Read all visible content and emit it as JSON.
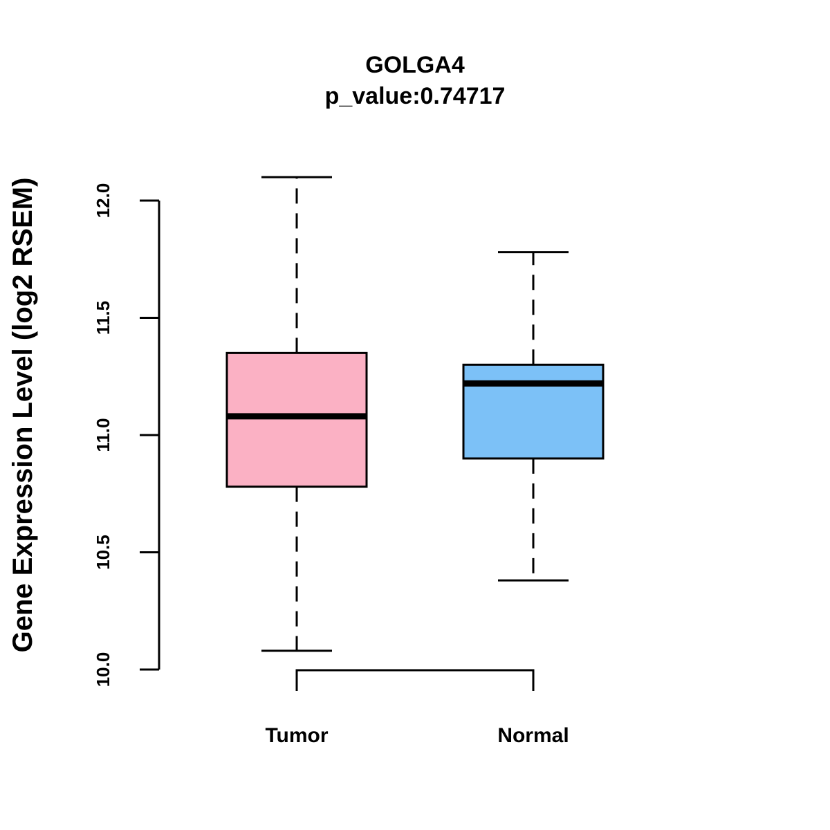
{
  "chart_data": {
    "type": "box",
    "title": "GOLGA4",
    "subtitle": "p_value:0.74717",
    "xlabel": "",
    "ylabel": "Gene Expression Level (log2 RSEM)",
    "ylim": [
      10.0,
      12.0
    ],
    "yticks": [
      "10.0",
      "10.5",
      "11.0",
      "11.5",
      "12.0"
    ],
    "categories": [
      "Tumor",
      "Normal"
    ],
    "boxes": [
      {
        "name": "Tumor",
        "whisker_low": 10.08,
        "q1": 10.78,
        "median": 11.08,
        "q3": 11.35,
        "whisker_high": 12.1,
        "color": "#fbb1c4"
      },
      {
        "name": "Normal",
        "whisker_low": 10.38,
        "q1": 10.9,
        "median": 11.22,
        "q3": 11.3,
        "whisker_high": 11.78,
        "color": "#7cc1f7"
      }
    ],
    "comparison_bracket": [
      "Tumor",
      "Normal"
    ],
    "grid": false,
    "legend": "none"
  }
}
